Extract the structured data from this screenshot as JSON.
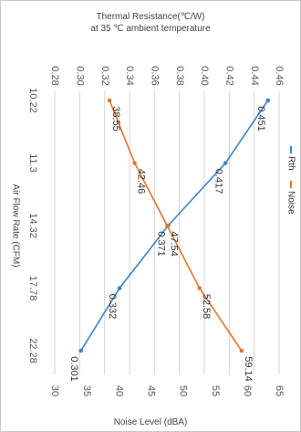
{
  "chart_data": {
    "type": "line",
    "title_line1": "Thermal Resistance(℃/W)",
    "title_line2": "at 35 ℃ ambient temperature",
    "xlabel_bottom": "Noise Level (dBA)",
    "ylabel_left": "Air Flow Rate (CFM)",
    "categories": [
      "10.22",
      "11.3",
      "14.32",
      "17.78",
      "22.28"
    ],
    "rth_axis": {
      "ticks": [
        "0.28",
        "0.30",
        "0.32",
        "0.34",
        "0.36",
        "0.38",
        "0.40",
        "0.42",
        "0.44",
        "0.46"
      ],
      "range": [
        0.28,
        0.46
      ]
    },
    "noise_axis": {
      "ticks": [
        "30",
        "35",
        "40",
        "45",
        "50",
        "55",
        "60",
        "65"
      ],
      "range": [
        30,
        65
      ]
    },
    "legend": {
      "position": "right",
      "items": [
        {
          "name": "Rth",
          "color": "#3d85c6"
        },
        {
          "name": "Noise",
          "color": "#e8742a"
        }
      ]
    },
    "series": [
      {
        "name": "Rth",
        "axis": "rth",
        "color": "#3d85c6",
        "values": [
          0.451,
          0.417,
          0.371,
          0.332,
          0.301
        ],
        "labels": [
          "0.451",
          "0.417",
          "0.371",
          "0.332",
          "0.301"
        ]
      },
      {
        "name": "Noise",
        "axis": "noise",
        "color": "#e8742a",
        "values": [
          38.55,
          42.46,
          47.54,
          52.58,
          59.14
        ],
        "labels": [
          "38.55",
          "42.46",
          "47.54",
          "52.58",
          "59.14"
        ]
      }
    ]
  }
}
